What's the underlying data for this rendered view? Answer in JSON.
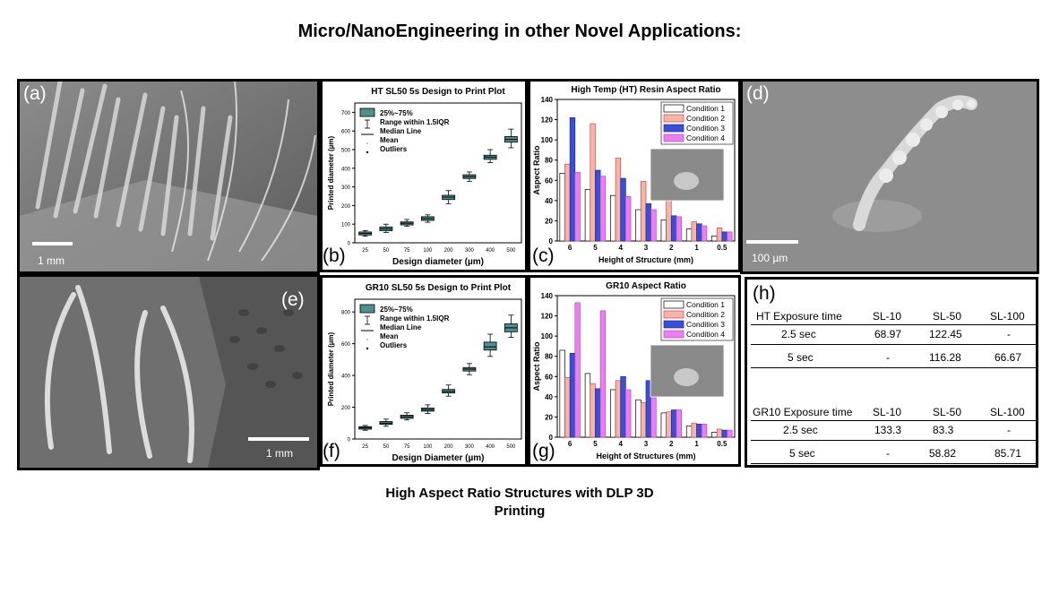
{
  "title": "Micro/NanoEngineering in other Novel Applications:",
  "caption_line1": "High Aspect Ratio Structures with DLP 3D",
  "caption_line2": "Printing",
  "panels": {
    "a": "(a)",
    "b": "(b)",
    "c": "(c)",
    "d": "(d)",
    "e": "(e)",
    "f": "(f)",
    "g": "(g)",
    "h": "(h)"
  },
  "scalebars": {
    "a": "1 mm",
    "d": "100 µm",
    "e": "1 mm"
  },
  "chart_data": [
    {
      "id": "b",
      "type": "box",
      "title": "HT SL50 5s Design to Print Plot",
      "xlabel": "Design diameter (µm)",
      "ylabel": "Printed diameter (µm)",
      "categories": [
        "25",
        "50",
        "75",
        "100",
        "200",
        "300",
        "400",
        "500"
      ],
      "medians": [
        50,
        75,
        105,
        130,
        245,
        355,
        460,
        555
      ],
      "q1": [
        42,
        65,
        96,
        120,
        232,
        345,
        448,
        540
      ],
      "q3": [
        58,
        85,
        112,
        140,
        255,
        365,
        470,
        570
      ],
      "whisker_low": [
        35,
        55,
        88,
        110,
        210,
        330,
        430,
        510
      ],
      "whisker_high": [
        65,
        100,
        125,
        150,
        280,
        380,
        500,
        610
      ],
      "ylim": [
        0,
        750
      ],
      "yticks": [
        0,
        100,
        200,
        300,
        400,
        500,
        600,
        700
      ],
      "legend": [
        "25%~75%",
        "Range within 1.5IQR",
        "Median Line",
        "Mean",
        "Outliers"
      ]
    },
    {
      "id": "c",
      "type": "bar",
      "title": "High Temp (HT) Resin Aspect Ratio",
      "xlabel": "Height of Structure (mm)",
      "ylabel": "Aspect Ratio",
      "categories": [
        "6",
        "5",
        "4",
        "3",
        "2",
        "1",
        "0.5"
      ],
      "ylim": [
        0,
        140
      ],
      "yticks": [
        0,
        20,
        40,
        60,
        80,
        100,
        120,
        140
      ],
      "series": [
        {
          "name": "Condition 1",
          "values": [
            67,
            51,
            45,
            31,
            21,
            12,
            5
          ]
        },
        {
          "name": "Condition 2",
          "values": [
            76,
            116,
            82,
            59,
            40,
            19,
            13
          ]
        },
        {
          "name": "Condition 3",
          "values": [
            122,
            70,
            62,
            37,
            25,
            17,
            9
          ]
        },
        {
          "name": "Condition 4",
          "values": [
            68,
            64,
            44,
            31,
            24,
            15,
            9
          ]
        }
      ]
    },
    {
      "id": "f",
      "type": "box",
      "title": "GR10 SL50 5s Design to Print Plot",
      "xlabel": "Design Diameter (µm)",
      "ylabel": "Printed diameter (µm)",
      "categories": [
        "25",
        "50",
        "75",
        "100",
        "200",
        "300",
        "400",
        "500"
      ],
      "medians": [
        70,
        100,
        140,
        185,
        300,
        440,
        580,
        700
      ],
      "q1": [
        62,
        92,
        130,
        175,
        290,
        428,
        560,
        675
      ],
      "q3": [
        78,
        110,
        150,
        195,
        312,
        450,
        610,
        725
      ],
      "whisker_low": [
        55,
        80,
        120,
        160,
        270,
        405,
        520,
        640
      ],
      "whisker_high": [
        85,
        125,
        165,
        215,
        340,
        475,
        660,
        780
      ],
      "ylim": [
        0,
        880
      ],
      "yticks": [
        0,
        200,
        400,
        600,
        800
      ],
      "legend": [
        "25%~75%",
        "Range within 1.5IQR",
        "Median Line",
        "Mean",
        "Outliers"
      ]
    },
    {
      "id": "g",
      "type": "bar",
      "title": "GR10 Aspect Ratio",
      "xlabel": "Height of Structures (mm)",
      "ylabel": "Aspect Ratio",
      "categories": [
        "6",
        "5",
        "4",
        "3",
        "2",
        "1",
        "0.5"
      ],
      "ylim": [
        0,
        140
      ],
      "yticks": [
        0,
        20,
        40,
        60,
        80,
        100,
        120,
        140
      ],
      "series": [
        {
          "name": "Condition 1",
          "values": [
            86,
            63,
            47,
            37,
            24,
            11,
            5
          ]
        },
        {
          "name": "Condition 2",
          "values": [
            59,
            53,
            56,
            34,
            25,
            14,
            8
          ]
        },
        {
          "name": "Condition 3",
          "values": [
            83,
            48,
            60,
            56,
            27,
            13,
            7
          ]
        },
        {
          "name": "Condition 4",
          "values": [
            133,
            125,
            47,
            39,
            27,
            13,
            7
          ]
        }
      ]
    }
  ],
  "table": {
    "ht": {
      "header": [
        "HT Exposure time",
        "SL-10",
        "SL-50",
        "SL-100"
      ],
      "rows": [
        [
          "2.5 sec",
          "68.97",
          "122.45",
          "-"
        ],
        [
          "5 sec",
          "-",
          "116.28",
          "66.67"
        ]
      ]
    },
    "gr": {
      "header": [
        "GR10 Exposure time",
        "SL-10",
        "SL-50",
        "SL-100"
      ],
      "rows": [
        [
          "2.5 sec",
          "133.3",
          "83.3",
          "-"
        ],
        [
          "5 sec",
          "-",
          "58.82",
          "85.71"
        ]
      ]
    }
  }
}
